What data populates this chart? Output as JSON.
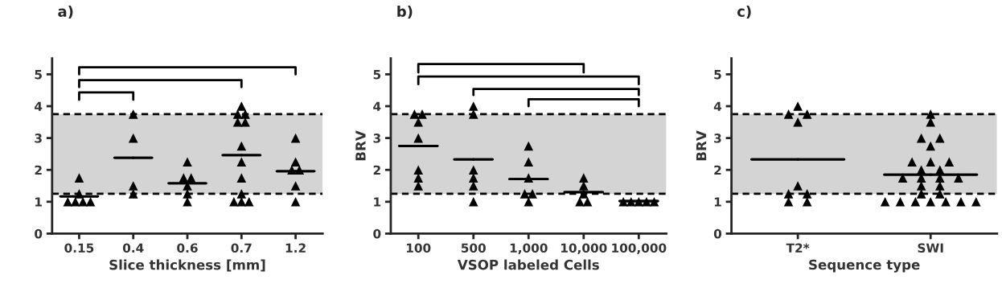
{
  "chart_data": [
    {
      "type": "scatter",
      "title": "a)",
      "xlabel": "Slice thickness [mm]",
      "categories": [
        "0.15",
        "0.4",
        "0.6",
        "0.7",
        "1.2"
      ],
      "ylim": [
        0,
        5.5
      ],
      "yticks": [
        0,
        1,
        2,
        3,
        4,
        5
      ],
      "marker": "triangle",
      "grid": false,
      "legend": false,
      "bands": [
        {
          "axis": "y",
          "from": 1.25,
          "to": 3.75,
          "color": "#d4d4d4"
        }
      ],
      "ref_lines": [
        {
          "axis": "y",
          "value": 1.25,
          "line_style": "dashed",
          "color": "#000000"
        },
        {
          "axis": "y",
          "value": 3.75,
          "line_style": "dashed",
          "color": "#000000"
        }
      ],
      "series": [
        {
          "color": "#000000",
          "x": [
            "0.15",
            "0.15",
            "0.15",
            "0.15",
            "0.15",
            "0.15",
            "0.4",
            "0.4",
            "0.4",
            "0.4",
            "0.6",
            "0.6",
            "0.6",
            "0.6",
            "0.6",
            "0.6",
            "0.7",
            "0.7",
            "0.7",
            "0.7",
            "0.7",
            "0.7",
            "0.7",
            "0.7",
            "0.7",
            "0.7",
            "0.7",
            "0.7",
            "1.2",
            "1.2",
            "1.2",
            "1.2",
            "1.2",
            "1.2"
          ],
          "values": [
            1.75,
            1.25,
            1,
            1,
            1,
            1,
            3.75,
            3,
            1.5,
            1.25,
            2.25,
            1.75,
            1.75,
            1.5,
            1.25,
            1,
            4,
            3.75,
            3.75,
            3.5,
            3.5,
            2.75,
            2.25,
            1.75,
            1.25,
            1,
            1,
            1,
            3,
            2.25,
            2,
            2,
            1.5,
            1
          ]
        },
        {
          "type": "box",
          "color": "#000000",
          "boxes": [
            {
              "low": 1.17,
              "q1": 1.17,
              "median": 1.17,
              "q3": 1.17,
              "high": 1.17
            },
            {
              "low": 2.38,
              "q1": 2.38,
              "median": 2.38,
              "q3": 2.38,
              "high": 2.38
            },
            {
              "low": 1.58,
              "q1": 1.58,
              "median": 1.58,
              "q3": 1.58,
              "high": 1.58
            },
            {
              "low": 2.46,
              "q1": 2.46,
              "median": 2.46,
              "q3": 2.46,
              "high": 2.46
            },
            {
              "low": 1.96,
              "q1": 1.96,
              "median": 1.96,
              "q3": 1.96,
              "high": 1.96
            }
          ]
        },
        {
          "type": "line",
          "marker": "none",
          "color": "#000000",
          "x": [
            "0.15",
            "0.15",
            "1.2",
            "1.2"
          ],
          "values": [
            5.0,
            5.22,
            5.22,
            5.0
          ]
        },
        {
          "type": "line",
          "marker": "none",
          "color": "#000000",
          "x": [
            "0.15",
            "0.15",
            "0.7",
            "0.7"
          ],
          "values": [
            4.6,
            4.82,
            4.82,
            4.6
          ]
        },
        {
          "type": "line",
          "marker": "none",
          "color": "#000000",
          "x": [
            "0.15",
            "0.15",
            "0.4",
            "0.4"
          ],
          "values": [
            4.2,
            4.43,
            4.43,
            4.2
          ]
        }
      ]
    },
    {
      "type": "scatter",
      "title": "b)",
      "xlabel": "VSOP labeled Cells",
      "ylabel": "BRV",
      "categories": [
        "100",
        "500",
        "1,000",
        "10,000",
        "100,000"
      ],
      "ylim": [
        0,
        5.5
      ],
      "yticks": [
        0,
        1,
        2,
        3,
        4,
        5
      ],
      "marker": "triangle",
      "grid": false,
      "legend": false,
      "bands": [
        {
          "axis": "y",
          "from": 1.25,
          "to": 3.75,
          "color": "#d4d4d4"
        }
      ],
      "ref_lines": [
        {
          "axis": "y",
          "value": 1.25,
          "line_style": "dashed",
          "color": "#000000"
        },
        {
          "axis": "y",
          "value": 3.75,
          "line_style": "dashed",
          "color": "#000000"
        }
      ],
      "series": [
        {
          "color": "#000000",
          "x": [
            "100",
            "100",
            "100",
            "100",
            "100",
            "100",
            "100",
            "500",
            "500",
            "500",
            "500",
            "500",
            "500",
            "1,000",
            "1,000",
            "1,000",
            "1,000",
            "1,000",
            "1,000",
            "10,000",
            "10,000",
            "10,000",
            "10,000",
            "10,000",
            "100,000",
            "100,000",
            "100,000",
            "100,000",
            "100,000"
          ],
          "values": [
            3.75,
            3.75,
            3.5,
            3,
            2,
            1.75,
            1.5,
            4,
            3.75,
            2,
            1.75,
            1.5,
            1,
            2.75,
            2.25,
            1.75,
            1.25,
            1.25,
            1,
            1.75,
            1.5,
            1.25,
            1,
            1,
            1,
            1,
            1,
            1,
            1
          ]
        },
        {
          "type": "box",
          "color": "#000000",
          "boxes": [
            {
              "low": 2.75,
              "q1": 2.75,
              "median": 2.75,
              "q3": 2.75,
              "high": 2.75
            },
            {
              "low": 2.33,
              "q1": 2.33,
              "median": 2.33,
              "q3": 2.33,
              "high": 2.33
            },
            {
              "low": 1.71,
              "q1": 1.71,
              "median": 1.71,
              "q3": 1.71,
              "high": 1.71
            },
            {
              "low": 1.3,
              "q1": 1.3,
              "median": 1.3,
              "q3": 1.3,
              "high": 1.3
            },
            {
              "low": 1.02,
              "q1": 1.02,
              "median": 1.02,
              "q3": 1.02,
              "high": 1.02
            }
          ]
        },
        {
          "type": "line",
          "marker": "none",
          "color": "#000000",
          "x": [
            "100",
            "100",
            "10,000",
            "10,000"
          ],
          "values": [
            5.06,
            5.32,
            5.32,
            5.06
          ]
        },
        {
          "type": "line",
          "marker": "none",
          "color": "#000000",
          "x": [
            "100",
            "100",
            "100,000",
            "100,000"
          ],
          "values": [
            4.69,
            4.93,
            4.93,
            4.69
          ]
        },
        {
          "type": "line",
          "marker": "none",
          "color": "#000000",
          "x": [
            "500",
            "500",
            "100,000",
            "100,000"
          ],
          "values": [
            4.35,
            4.54,
            4.54,
            4.35
          ]
        },
        {
          "type": "line",
          "marker": "none",
          "color": "#000000",
          "x": [
            "1,000",
            "1,000",
            "100,000",
            "100,000"
          ],
          "values": [
            4.0,
            4.22,
            4.22,
            4.0
          ]
        }
      ]
    },
    {
      "type": "scatter",
      "title": "c)",
      "xlabel": "Sequence type",
      "ylabel": "BRV",
      "categories": [
        "T2*",
        "SWI"
      ],
      "ylim": [
        0,
        5.5
      ],
      "yticks": [
        0,
        1,
        2,
        3,
        4,
        5
      ],
      "marker": "triangle",
      "grid": false,
      "legend": false,
      "bands": [
        {
          "axis": "y",
          "from": 1.25,
          "to": 3.75,
          "color": "#d4d4d4"
        }
      ],
      "ref_lines": [
        {
          "axis": "y",
          "value": 1.25,
          "line_style": "dashed",
          "color": "#000000"
        },
        {
          "axis": "y",
          "value": 3.75,
          "line_style": "dashed",
          "color": "#000000"
        }
      ],
      "series": [
        {
          "color": "#000000",
          "x": [
            "T2*",
            "T2*",
            "T2*",
            "T2*",
            "T2*",
            "T2*",
            "T2*",
            "T2*",
            "T2*",
            "SWI",
            "SWI",
            "SWI",
            "SWI",
            "SWI",
            "SWI",
            "SWI",
            "SWI",
            "SWI",
            "SWI",
            "SWI",
            "SWI",
            "SWI",
            "SWI",
            "SWI",
            "SWI",
            "SWI",
            "SWI",
            "SWI",
            "SWI",
            "SWI",
            "SWI",
            "SWI",
            "SWI",
            "SWI"
          ],
          "values": [
            4,
            3.75,
            3.75,
            3.5,
            1.5,
            1.25,
            1.25,
            1,
            1,
            3.75,
            3.5,
            3,
            3,
            2.75,
            2.25,
            2.25,
            2.25,
            2,
            2,
            1.75,
            1.75,
            1.75,
            1.75,
            1.5,
            1.5,
            1.25,
            1.25,
            1,
            1,
            1,
            1,
            1,
            1,
            1
          ]
        },
        {
          "type": "box",
          "color": "#000000",
          "boxes": [
            {
              "low": 2.33,
              "q1": 2.33,
              "median": 2.33,
              "q3": 2.33,
              "high": 2.33
            },
            {
              "low": 1.85,
              "q1": 1.85,
              "median": 1.85,
              "q3": 1.85,
              "high": 1.85
            }
          ]
        }
      ]
    }
  ]
}
